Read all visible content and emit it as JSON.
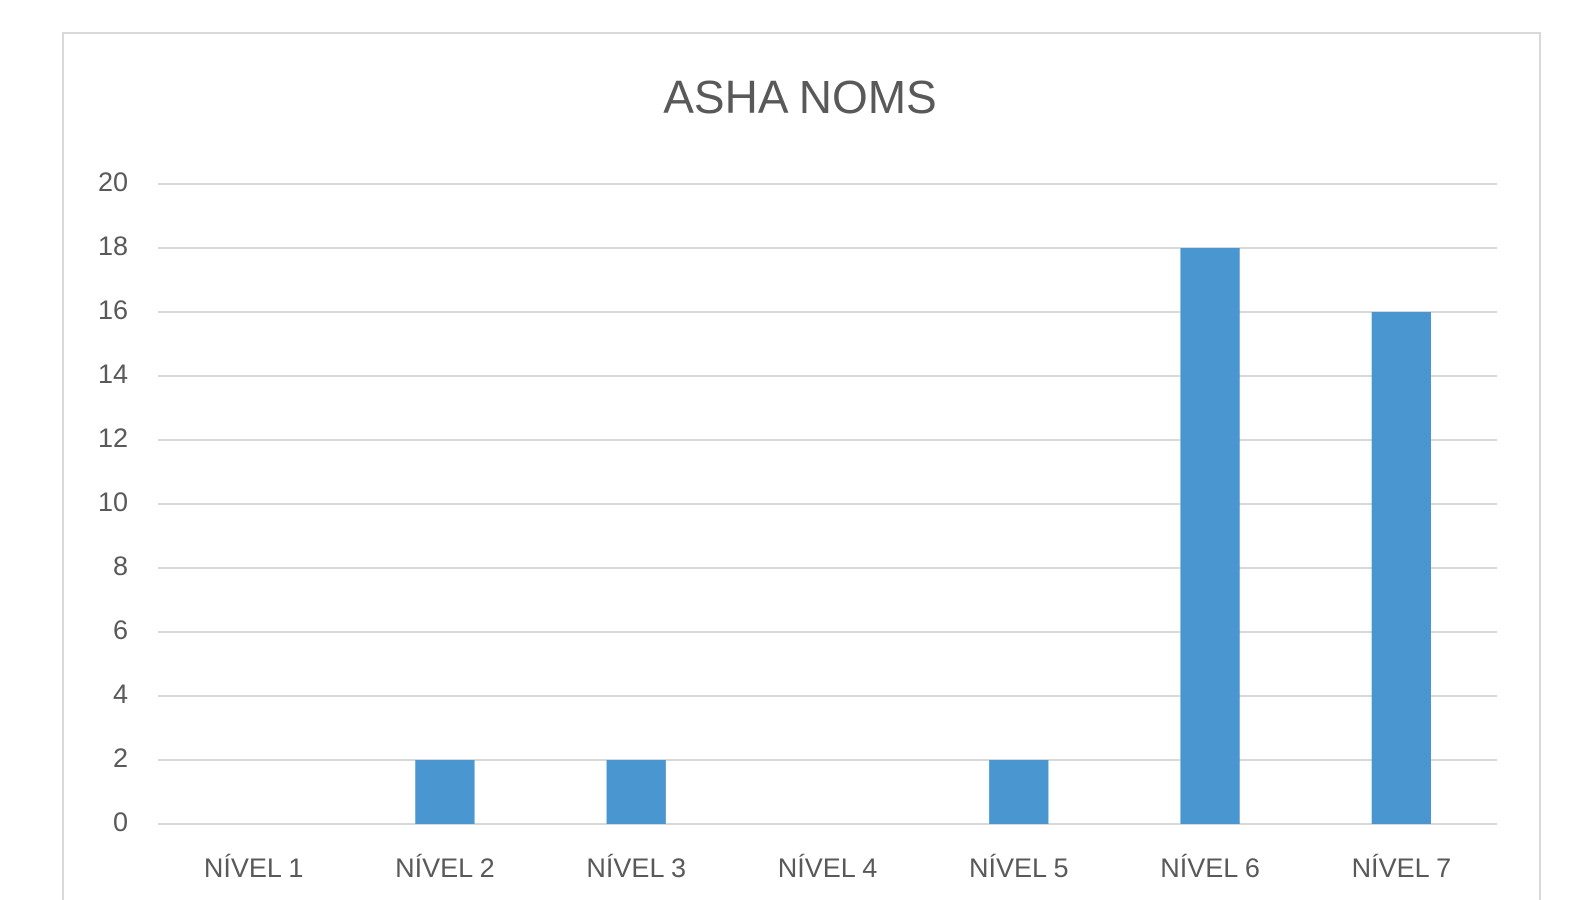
{
  "chart_data": {
    "type": "bar",
    "title": "ASHA NOMS",
    "categories": [
      "NÍVEL 1",
      "NÍVEL 2",
      "NÍVEL 3",
      "NÍVEL 4",
      "NÍVEL 5",
      "NÍVEL 6",
      "NÍVEL 7"
    ],
    "values": [
      0,
      2,
      2,
      0,
      2,
      18,
      16
    ],
    "color": "#4a96d0",
    "ylim": [
      0,
      20
    ],
    "yticks": [
      0,
      2,
      4,
      6,
      8,
      10,
      12,
      14,
      16,
      18,
      20
    ],
    "grid": true
  }
}
